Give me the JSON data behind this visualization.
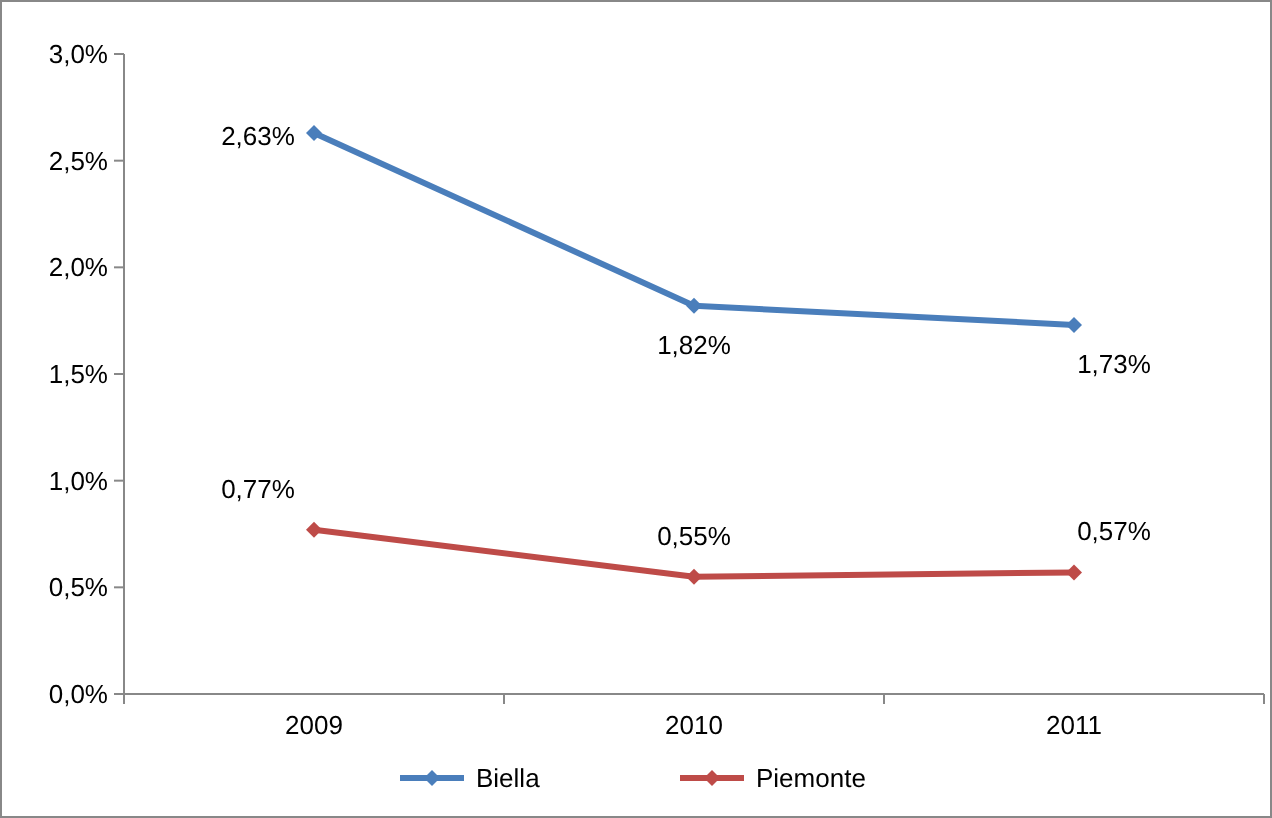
{
  "chart_data": {
    "type": "line",
    "categories": [
      "2009",
      "2010",
      "2011"
    ],
    "series": [
      {
        "name": "Biella",
        "color": "#4a7ebb",
        "values": [
          2.63,
          1.82,
          1.73
        ],
        "value_labels": [
          "2,63%",
          "1,82%",
          "1,73%"
        ]
      },
      {
        "name": "Piemonte",
        "color": "#be4b48",
        "values": [
          0.77,
          0.55,
          0.57
        ],
        "value_labels": [
          "0,77%",
          "0,55%",
          "0,57%"
        ]
      }
    ],
    "ylim": [
      0,
      3
    ],
    "yticks": [
      {
        "value": 0,
        "label": "0,0%"
      },
      {
        "value": 0.5,
        "label": "0,5%"
      },
      {
        "value": 1,
        "label": "1,0%"
      },
      {
        "value": 1.5,
        "label": "1,5%"
      },
      {
        "value": 2,
        "label": "2,0%"
      },
      {
        "value": 2.5,
        "label": "2,5%"
      },
      {
        "value": 3,
        "label": "3,0%"
      }
    ],
    "grid": false,
    "legend": "bottom",
    "marker": "diamond",
    "line_style": "solid"
  }
}
